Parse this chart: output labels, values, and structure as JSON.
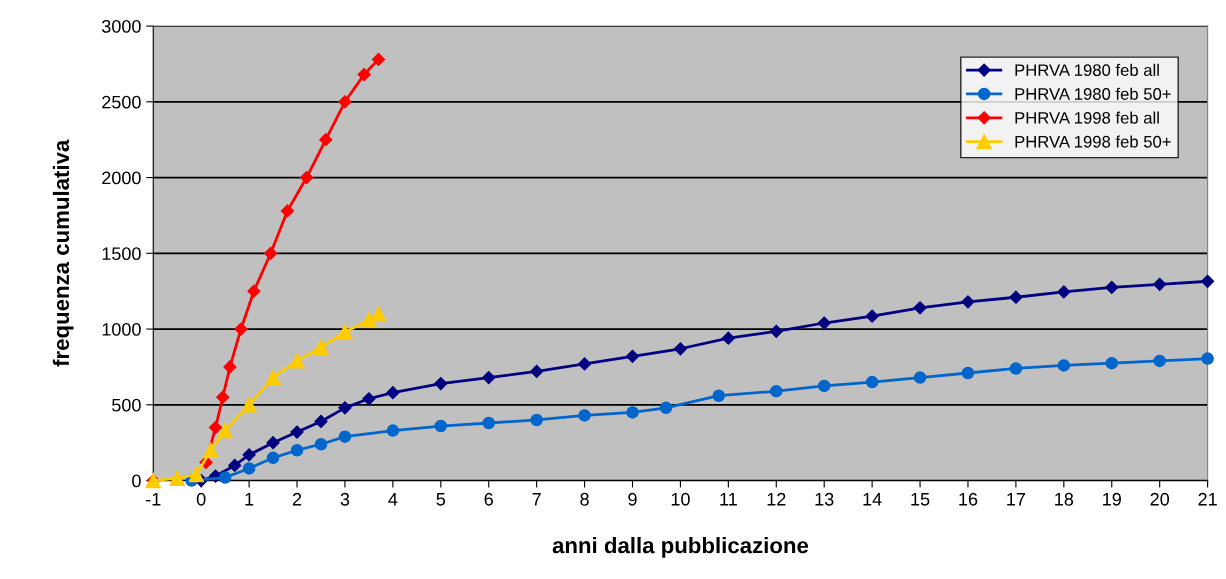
{
  "chart_data": {
    "type": "line",
    "xlabel": "anni dalla pubblicazione",
    "ylabel": "frequenza cumulativa",
    "xlim": [
      -1,
      21
    ],
    "xticks": [
      -1,
      0,
      1,
      2,
      3,
      4,
      5,
      6,
      7,
      8,
      9,
      10,
      11,
      12,
      13,
      14,
      15,
      16,
      17,
      18,
      19,
      20,
      21
    ],
    "ylim": [
      0,
      3000
    ],
    "yticks": [
      0,
      500,
      1000,
      1500,
      2000,
      2500,
      3000
    ],
    "grid": "y",
    "legend": "top right",
    "series": [
      {
        "name": "PHRVA 1980 feb all",
        "color": "#000080",
        "marker": "diamond",
        "x": [
          0,
          0.3,
          0.7,
          1,
          1.5,
          2,
          2.5,
          3,
          3.5,
          4,
          5,
          6,
          7,
          8,
          9,
          10,
          11,
          12,
          13,
          14,
          15,
          16,
          17,
          18,
          19,
          20,
          21
        ],
        "values": [
          0,
          30,
          100,
          170,
          250,
          320,
          390,
          480,
          540,
          580,
          640,
          680,
          720,
          770,
          820,
          870,
          940,
          985,
          1040,
          1085,
          1140,
          1180,
          1210,
          1245,
          1275,
          1295,
          1315
        ]
      },
      {
        "name": "PHRVA 1980 feb 50+",
        "color": "#0066cc",
        "marker": "circle",
        "x": [
          -0.2,
          0.5,
          1,
          1.5,
          2,
          2.5,
          3,
          4,
          5,
          6,
          7,
          8,
          9,
          9.7,
          10.8,
          12,
          13,
          14,
          15,
          16,
          17,
          18,
          19,
          20,
          21
        ],
        "values": [
          0,
          20,
          80,
          150,
          200,
          240,
          290,
          330,
          360,
          380,
          400,
          430,
          450,
          480,
          560,
          590,
          625,
          650,
          680,
          710,
          740,
          760,
          775,
          790,
          805
        ]
      },
      {
        "name": "PHRVA 1998 feb all",
        "color": "#ff0000",
        "marker": "diamond",
        "x": [
          -1,
          -0.5,
          -0.1,
          0.1,
          0.3,
          0.45,
          0.6,
          0.83,
          1.1,
          1.45,
          1.8,
          2.2,
          2.6,
          3,
          3.4,
          3.7
        ],
        "values": [
          0,
          null,
          null,
          120,
          350,
          550,
          750,
          1000,
          1250,
          1500,
          1780,
          2000,
          2250,
          2500,
          2680,
          2780
        ]
      },
      {
        "name": "PHRVA 1998 feb 50+",
        "color": "#ffcc00",
        "marker": "triangle",
        "x": [
          -1,
          -0.5,
          -0.1,
          0.2,
          0.5,
          1,
          1.5,
          2,
          2.5,
          3,
          3.5,
          3.7
        ],
        "values": [
          0,
          15,
          40,
          200,
          330,
          500,
          680,
          790,
          880,
          980,
          1060,
          1100
        ]
      }
    ]
  }
}
